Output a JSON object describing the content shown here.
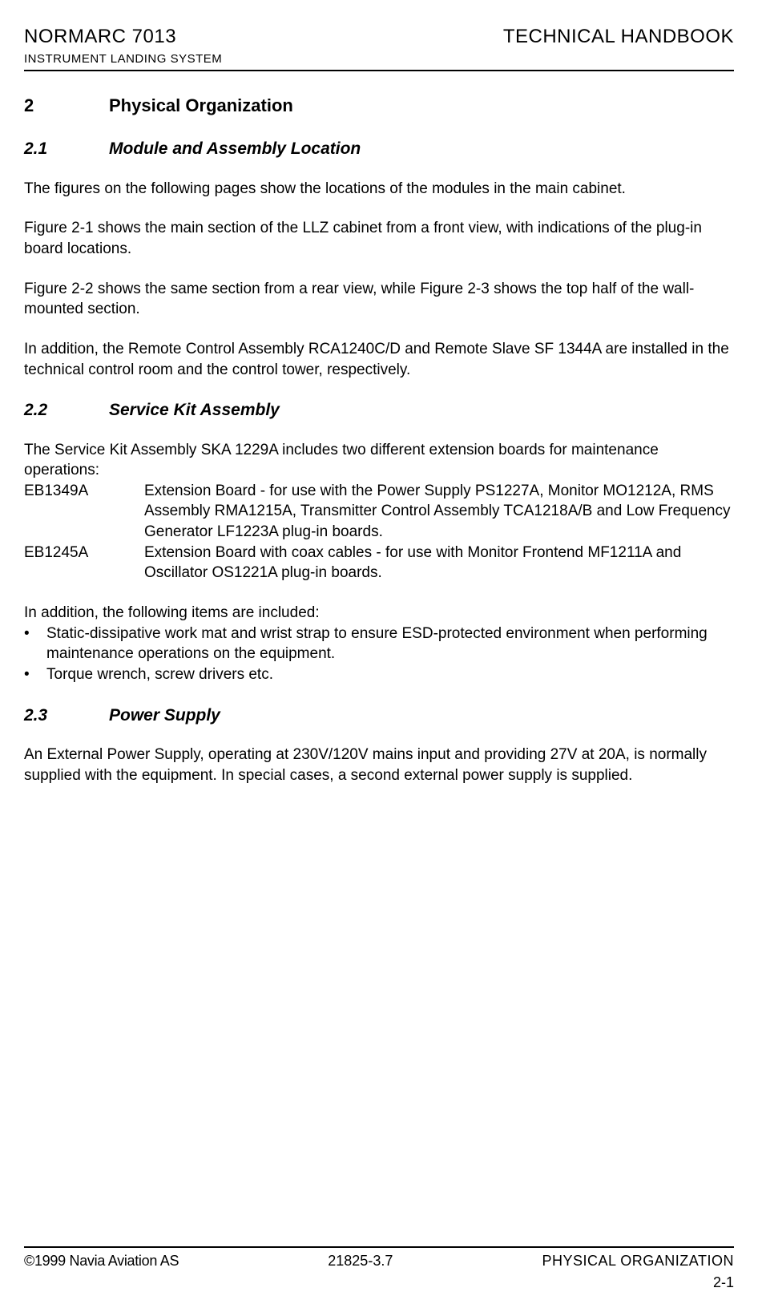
{
  "header": {
    "left": "NORMARC 7013",
    "right": "TECHNICAL HANDBOOK",
    "sub": "INSTRUMENT LANDING SYSTEM"
  },
  "sections": {
    "s2": {
      "num": "2",
      "title": "Physical Organization"
    },
    "s2_1": {
      "num": "2.1",
      "title": "Module and Assembly Location"
    },
    "s2_2": {
      "num": "2.2",
      "title": "Service Kit Assembly"
    },
    "s2_3": {
      "num": "2.3",
      "title": "Power Supply"
    }
  },
  "body": {
    "p1": "The figures on the following pages show the locations of the modules in the main cabinet.",
    "p2": "Figure 2-1 shows the main section of the LLZ cabinet from a front view, with indications of the plug-in board locations.",
    "p3": "Figure 2-2 shows the same section from a rear view, while Figure 2-3 shows the top half of the wall-mounted section.",
    "p4": "In addition, the Remote Control Assembly RCA1240C/D and Remote Slave SF 1344A are installed in the technical control room and the control tower, respectively.",
    "p5": "The Service Kit Assembly SKA 1229A includes two different extension boards for maintenance operations:",
    "defs": [
      {
        "term": "EB1349A",
        "desc": "Extension Board - for use with the Power Supply PS1227A, Monitor MO1212A, RMS Assembly RMA1215A, Transmitter Control Assembly TCA1218A/B and Low Frequency Generator LF1223A plug-in boards."
      },
      {
        "term": "EB1245A",
        "desc": "Extension Board with coax cables - for use with Monitor Frontend MF1211A and Oscillator OS1221A plug-in boards."
      }
    ],
    "p6": "In addition, the following items are included:",
    "bullets": [
      "Static-dissipative work mat and wrist strap to ensure ESD-protected environment when performing maintenance operations on the equipment.",
      "Torque wrench, screw drivers etc."
    ],
    "p7": "An External Power Supply, operating at 230V/120V mains input and providing 27V at 20A, is normally supplied with the equipment. In special cases, a second external power supply is supplied."
  },
  "footer": {
    "left": "©1999 Navia Aviation AS",
    "mid": "21825-3.7",
    "right": "PHYSICAL ORGANIZATION",
    "page": "2-1"
  },
  "bullet_char": "•"
}
